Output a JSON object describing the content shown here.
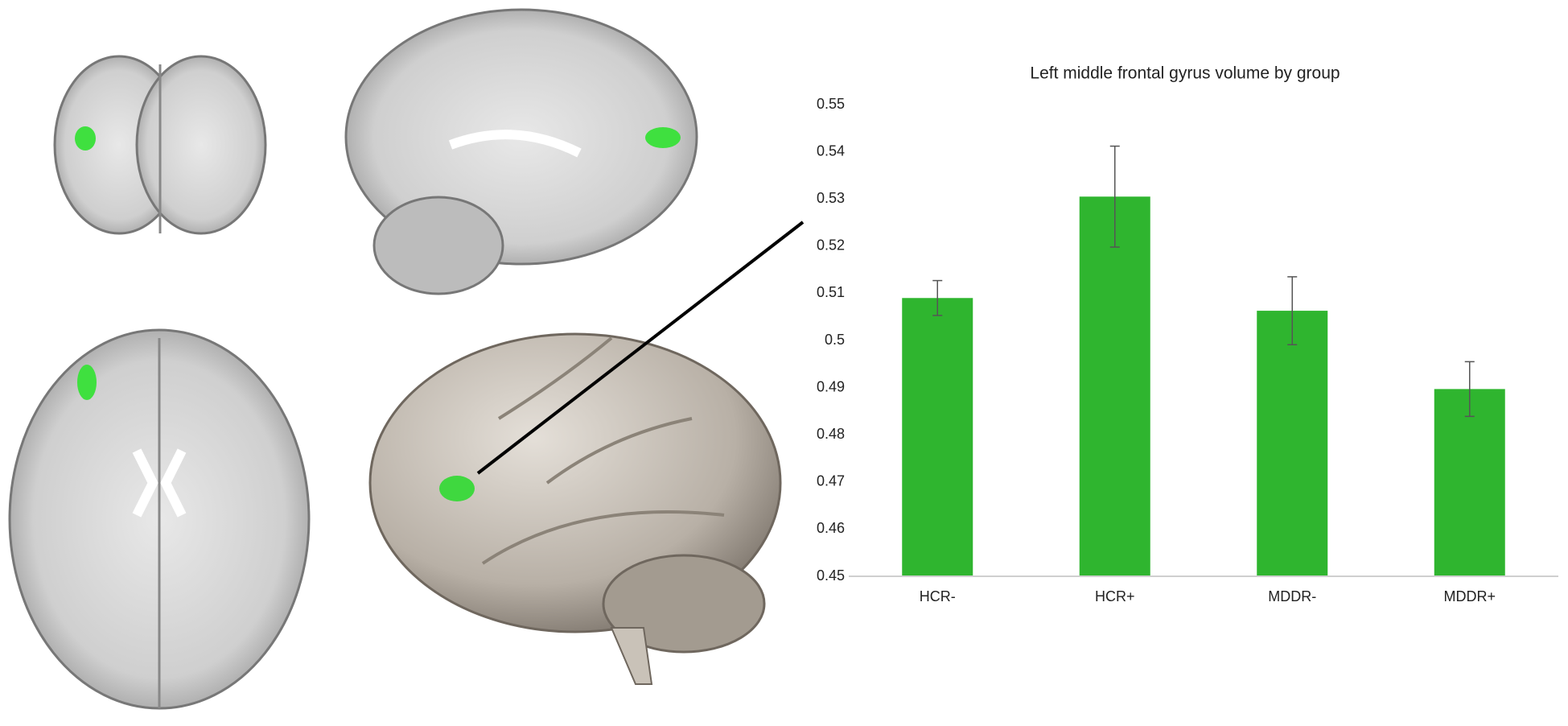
{
  "chart_data": {
    "type": "bar",
    "title": "Left middle frontal gyrus volume by group",
    "categories": [
      "HCR-",
      "HCR+",
      "MDDR-",
      "MDDR+"
    ],
    "values": [
      0.509,
      0.5305,
      0.5063,
      0.4897
    ],
    "errors": [
      0.0037,
      0.0107,
      0.0072,
      0.0058
    ],
    "color": "#2fb52f",
    "ylim": [
      0.45,
      0.55
    ],
    "yticks": [
      0.45,
      0.46,
      0.47,
      0.48,
      0.49,
      0.5,
      0.51,
      0.52,
      0.53,
      0.54,
      0.55
    ],
    "grid": false
  }
}
